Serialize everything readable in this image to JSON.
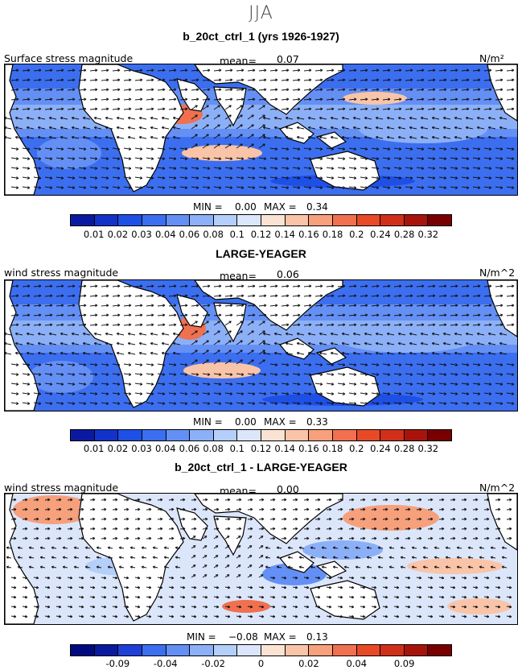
{
  "season": "JJA",
  "panels": [
    {
      "title": "b_20ct_ctrl_1 (yrs 1926-1927)",
      "variable": "Surface stress magnitude",
      "mean_label": "mean=",
      "mean_value": "0.07",
      "units": "N/m²",
      "min_label": "MIN =",
      "min_value": "0.00",
      "max_label": "MAX =",
      "max_value": "0.34",
      "colorbar_colors": [
        "#0a1aa0",
        "#1232c8",
        "#1e50e6",
        "#3c6ef0",
        "#6490f5",
        "#8cb0f8",
        "#b4cff9",
        "#dce6fa",
        "#fbe3d3",
        "#f9c4a8",
        "#f6a07c",
        "#f07050",
        "#e84a28",
        "#d0301a",
        "#a8140c",
        "#780000"
      ],
      "tick_labels": [
        "0.01",
        "0.02",
        "0.03",
        "0.04",
        "0.06",
        "0.08",
        "0.1",
        "0.12",
        "0.14",
        "0.16",
        "0.18",
        "0.2",
        "0.24",
        "0.28",
        "0.32"
      ]
    },
    {
      "title": "LARGE-YEAGER",
      "variable": "wind stress magnitude",
      "mean_label": "mean=",
      "mean_value": "0.06",
      "units": "N/m^2",
      "min_label": "MIN =",
      "min_value": "0.00",
      "max_label": "MAX =",
      "max_value": "0.33",
      "colorbar_colors": [
        "#0a1aa0",
        "#1232c8",
        "#1e50e6",
        "#3c6ef0",
        "#6490f5",
        "#8cb0f8",
        "#b4cff9",
        "#dce6fa",
        "#fbe3d3",
        "#f9c4a8",
        "#f6a07c",
        "#f07050",
        "#e84a28",
        "#d0301a",
        "#a8140c",
        "#780000"
      ],
      "tick_labels": [
        "0.01",
        "0.02",
        "0.03",
        "0.04",
        "0.06",
        "0.08",
        "0.1",
        "0.12",
        "0.14",
        "0.16",
        "0.18",
        "0.2",
        "0.24",
        "0.28",
        "0.32"
      ]
    },
    {
      "title": "b_20ct_ctrl_1 - LARGE-YEAGER",
      "variable": "wind stress magnitude",
      "mean_label": "mean=",
      "mean_value": "0.00",
      "units": "N/m^2",
      "min_label": "MIN =",
      "min_value": "−0.08",
      "max_label": "MAX =",
      "max_value": "0.13",
      "colorbar_colors": [
        "#000a80",
        "#0a1aa0",
        "#1e40d8",
        "#3c6ef0",
        "#6490f5",
        "#8cb0f8",
        "#b4cff9",
        "#dce6fa",
        "#fbe3d3",
        "#f9c4a8",
        "#f6a07c",
        "#f07050",
        "#e84a28",
        "#d0301a",
        "#a8140c",
        "#780000"
      ],
      "tick_labels": [
        "",
        "-0.09",
        "",
        "-0.04",
        "",
        "-0.02",
        "",
        "0",
        "",
        "0.02",
        "",
        "0.04",
        "",
        "0.09",
        ""
      ]
    }
  ]
}
